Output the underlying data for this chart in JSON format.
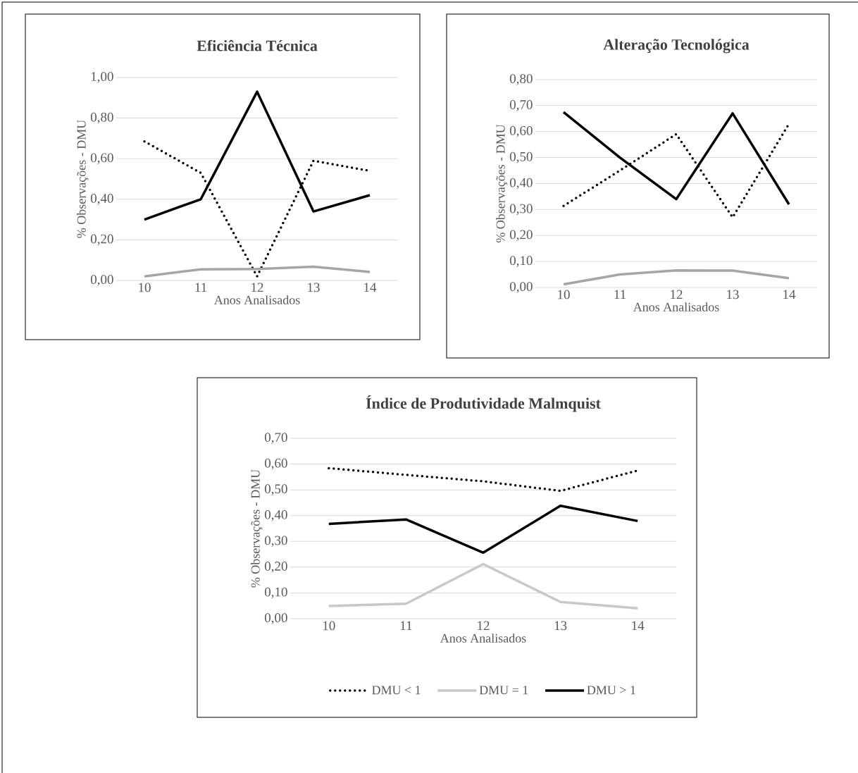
{
  "chart_data": [
    {
      "type": "line",
      "title": "Eficiência Técnica",
      "xlabel": "Anos Analisados",
      "ylabel": "% Observações - DMU",
      "categories": [
        "10",
        "11",
        "12",
        "13",
        "14"
      ],
      "ylim": [
        0,
        1
      ],
      "yticks": [
        {
          "value": 0,
          "label": "0,00"
        },
        {
          "value": 0.2,
          "label": "0,20"
        },
        {
          "value": 0.4,
          "label": "0,40"
        },
        {
          "value": 0.6,
          "label": "0,60"
        },
        {
          "value": 0.8,
          "label": "0,80"
        },
        {
          "value": 1,
          "label": "1,00"
        }
      ],
      "grid": "y",
      "legend": false,
      "series": [
        {
          "color": "#000000",
          "line_style": "dotted",
          "values": [
            0.685,
            0.53,
            0.02,
            0.59,
            0.54
          ]
        },
        {
          "color": "#a5a5a5",
          "line_style": "solid",
          "values": [
            0.02,
            0.055,
            0.056,
            0.068,
            0.042
          ]
        },
        {
          "color": "#000000",
          "line_style": "solid",
          "values": [
            0.3,
            0.4,
            0.93,
            0.34,
            0.42
          ]
        }
      ]
    },
    {
      "type": "line",
      "title": "Alteração Tecnológica",
      "xlabel": "Anos Analisados",
      "ylabel": "% Observações - DMU",
      "categories": [
        "10",
        "11",
        "12",
        "13",
        "14"
      ],
      "ylim": [
        0,
        0.8
      ],
      "yticks": [
        {
          "value": 0,
          "label": "0,00"
        },
        {
          "value": 0.1,
          "label": "0,10"
        },
        {
          "value": 0.2,
          "label": "0,20"
        },
        {
          "value": 0.3,
          "label": "0,30"
        },
        {
          "value": 0.4,
          "label": "0,40"
        },
        {
          "value": 0.5,
          "label": "0,50"
        },
        {
          "value": 0.6,
          "label": "0,60"
        },
        {
          "value": 0.7,
          "label": "0,70"
        },
        {
          "value": 0.8,
          "label": "0,80"
        }
      ],
      "grid": "y",
      "legend": false,
      "series": [
        {
          "color": "#000000",
          "line_style": "dotted",
          "values": [
            0.314,
            0.45,
            0.59,
            0.27,
            0.63
          ]
        },
        {
          "color": "#a5a5a5",
          "line_style": "solid",
          "values": [
            0.012,
            0.05,
            0.066,
            0.065,
            0.036
          ]
        },
        {
          "color": "#000000",
          "line_style": "solid",
          "values": [
            0.675,
            0.5,
            0.34,
            0.67,
            0.32
          ]
        }
      ]
    },
    {
      "type": "line",
      "title": "Índice de Produtividade Malmquist",
      "xlabel": "Anos Analisados",
      "ylabel": "% Observações - DMU",
      "categories": [
        "10",
        "11",
        "12",
        "13",
        "14"
      ],
      "ylim": [
        0,
        0.7
      ],
      "yticks": [
        {
          "value": 0,
          "label": "0,00"
        },
        {
          "value": 0.1,
          "label": "0,10"
        },
        {
          "value": 0.2,
          "label": "0,20"
        },
        {
          "value": 0.3,
          "label": "0,30"
        },
        {
          "value": 0.4,
          "label": "0,40"
        },
        {
          "value": 0.5,
          "label": "0,50"
        },
        {
          "value": 0.6,
          "label": "0,60"
        },
        {
          "value": 0.7,
          "label": "0,70"
        }
      ],
      "grid": "y",
      "legend": "bottom",
      "series": [
        {
          "name": "DMU < 1",
          "color": "#000000",
          "line_style": "dotted",
          "values": [
            0.584,
            0.558,
            0.533,
            0.496,
            0.575
          ]
        },
        {
          "name": "DMU = 1",
          "color": "#c8c8c8",
          "line_style": "solid",
          "values": [
            0.049,
            0.058,
            0.212,
            0.065,
            0.04
          ]
        },
        {
          "name": "DMU > 1",
          "color": "#000000",
          "line_style": "solid",
          "values": [
            0.368,
            0.385,
            0.256,
            0.438,
            0.379
          ]
        }
      ]
    }
  ]
}
